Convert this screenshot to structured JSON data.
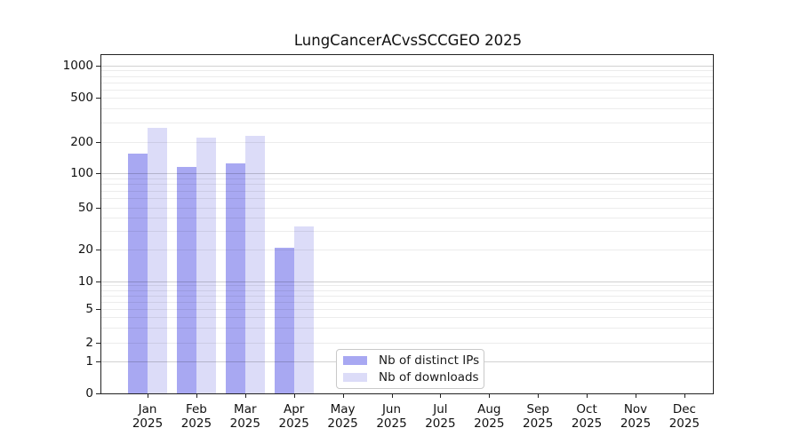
{
  "chart_data": {
    "type": "bar",
    "title": "LungCancerACvsSCCGEO 2025",
    "categories": [
      "Jan",
      "Feb",
      "Mar",
      "Apr",
      "May",
      "Jun",
      "Jul",
      "Aug",
      "Sep",
      "Oct",
      "Nov",
      "Dec"
    ],
    "x_tick_second_line": "2025",
    "series": [
      {
        "name": "Nb of distinct IPs",
        "color": "#a8a8f2",
        "values": [
          155,
          115,
          125,
          21,
          0,
          0,
          0,
          0,
          0,
          0,
          0,
          0
        ]
      },
      {
        "name": "Nb of downloads",
        "color": "#dcdcf8",
        "values": [
          270,
          220,
          225,
          33,
          0,
          0,
          0,
          0,
          0,
          0,
          0,
          0
        ]
      }
    ],
    "yticks": [
      0,
      1,
      2,
      5,
      10,
      20,
      50,
      100,
      200,
      500,
      1000
    ],
    "ytick_labels": [
      "0",
      "1",
      "2",
      "5",
      "10",
      "20",
      "50",
      "100",
      "200",
      "500",
      "1000"
    ],
    "yscale": "log-like with zero baseline",
    "ylim": [
      0,
      1300
    ],
    "grid": true,
    "legend": {
      "position": "lower center"
    }
  }
}
